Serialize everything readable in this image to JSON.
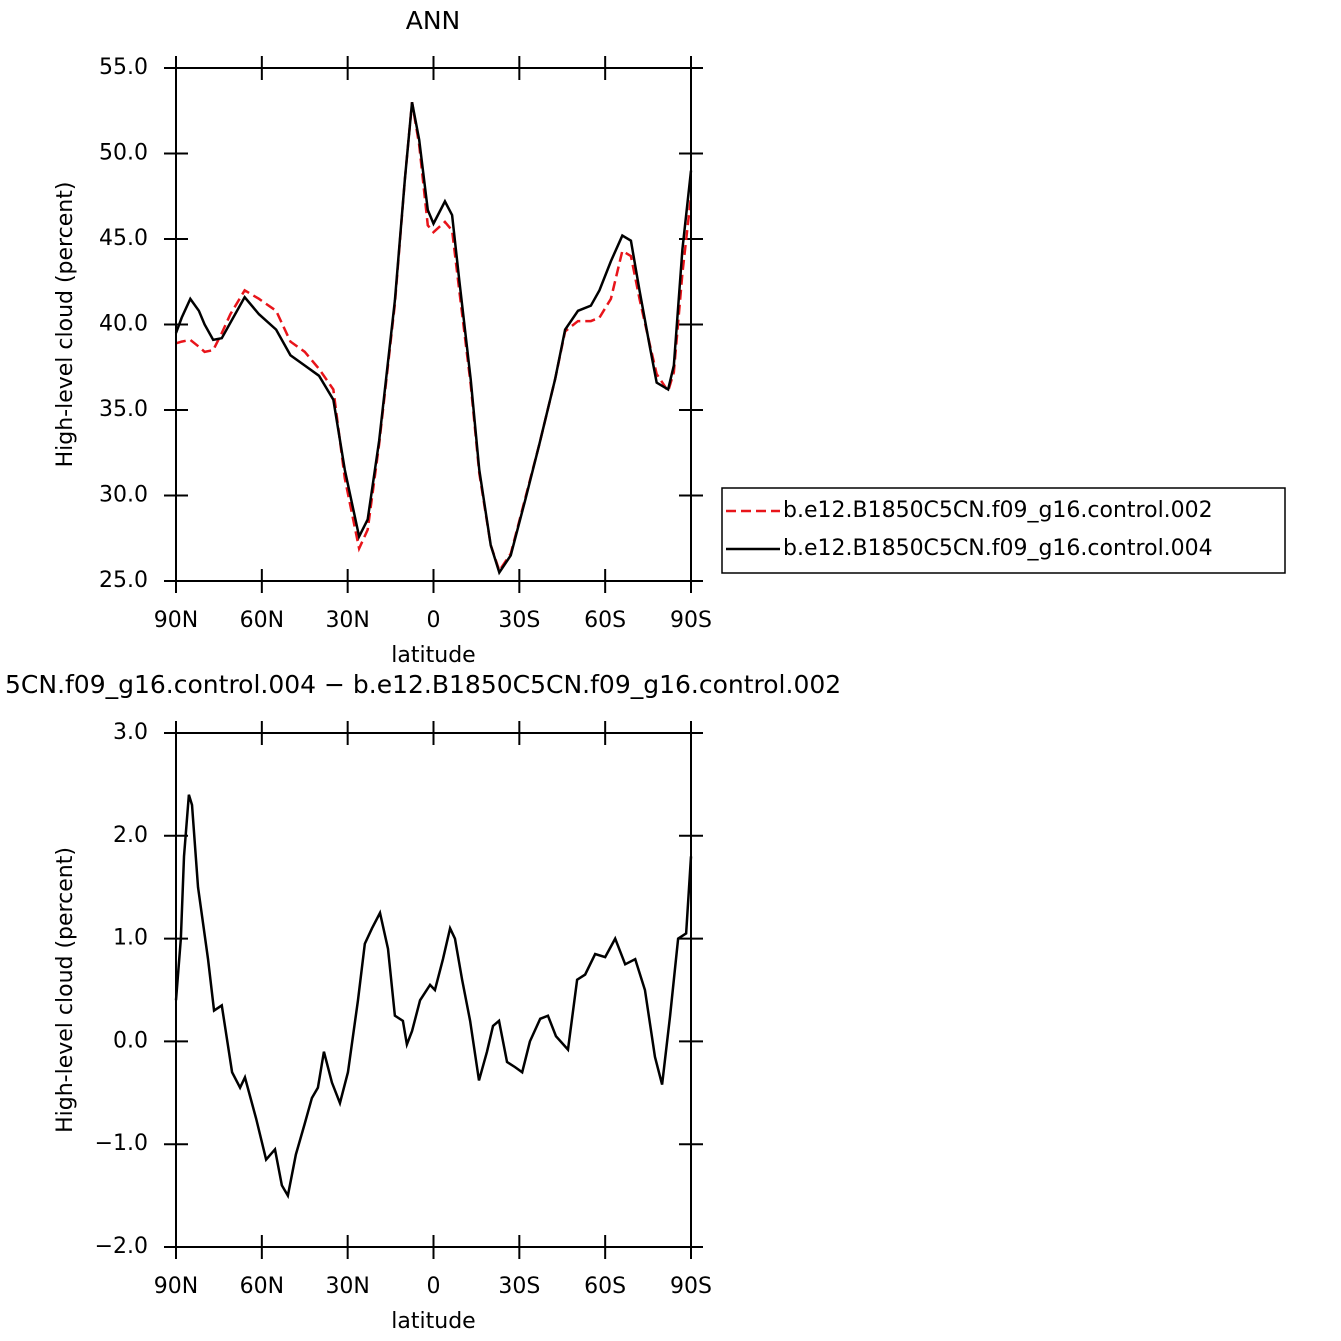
{
  "chart_data": [
    {
      "type": "line",
      "title": "ANN",
      "xlabel": "latitude",
      "ylabel": "High-level cloud (percent)",
      "x": [
        90,
        88,
        85,
        82,
        80,
        77,
        74,
        71,
        66,
        61,
        55,
        50,
        45,
        40,
        35,
        31,
        26,
        23,
        19,
        13.5,
        10,
        7.5,
        5,
        2,
        0,
        -4,
        -6.5,
        -9,
        -13,
        -16,
        -20,
        -23,
        -27,
        -32,
        -37,
        -42.5,
        -46,
        -50.5,
        -55,
        -58,
        -62,
        -66,
        -69,
        -72,
        -75.5,
        -78,
        -82,
        -84,
        -87,
        -90
      ],
      "xlim": [
        90,
        -90
      ],
      "xticks": [
        {
          "value": 90,
          "label": "90N"
        },
        {
          "value": 60,
          "label": "60N"
        },
        {
          "value": 30,
          "label": "30N"
        },
        0,
        {
          "value": -30,
          "label": "30S"
        },
        {
          "value": -60,
          "label": "60S"
        },
        {
          "value": -90,
          "label": "90S"
        }
      ],
      "ylim": [
        25,
        55
      ],
      "yticks": [
        {
          "value": 25,
          "label": "25.0"
        },
        {
          "value": 30,
          "label": "30.0"
        },
        {
          "value": 35,
          "label": "35.0"
        },
        {
          "value": 40,
          "label": "40.0"
        },
        {
          "value": 45,
          "label": "45.0"
        },
        {
          "value": 50,
          "label": "50.0"
        },
        {
          "value": 55,
          "label": "55.0"
        }
      ],
      "legend": "right",
      "series": [
        {
          "name": "b.e12.B1850C5CN.f09_g16.control.002",
          "color": "#e8141a",
          "linestyle": "dashed",
          "values": [
            38.9,
            39.0,
            39.1,
            38.7,
            38.4,
            38.5,
            39.5,
            40.6,
            42.0,
            41.5,
            40.8,
            39.0,
            38.4,
            37.4,
            36.2,
            31.0,
            26.9,
            28.0,
            33.0,
            41.2,
            48.5,
            53.0,
            50.5,
            45.8,
            45.4,
            46.0,
            45.5,
            42.0,
            36.5,
            31.3,
            27.1,
            25.6,
            26.6,
            29.8,
            33.0,
            36.8,
            39.6,
            40.2,
            40.2,
            40.4,
            41.5,
            44.3,
            44.0,
            41.5,
            38.9,
            37.1,
            36.1,
            37.2,
            43.0,
            47.5
          ]
        },
        {
          "name": "b.e12.B1850C5CN.f09_g16.control.004",
          "color": "#000000",
          "linestyle": "solid",
          "values": [
            39.5,
            40.4,
            41.5,
            40.8,
            40.0,
            39.1,
            39.2,
            40.1,
            41.6,
            40.6,
            39.7,
            38.2,
            37.6,
            37.0,
            35.6,
            31.5,
            27.6,
            28.6,
            33.2,
            41.4,
            48.5,
            53.0,
            50.8,
            46.7,
            45.9,
            47.2,
            46.4,
            42.6,
            36.8,
            31.5,
            27.1,
            25.5,
            26.5,
            29.7,
            33.0,
            36.8,
            39.7,
            40.8,
            41.1,
            42.0,
            43.7,
            45.2,
            44.9,
            42.0,
            38.8,
            36.6,
            36.2,
            37.6,
            44.4,
            49.0
          ]
        }
      ]
    },
    {
      "type": "line",
      "title": "5CN.f09_g16.control.004 − b.e12.B1850C5CN.f09_g16.control.002",
      "xlabel": "latitude",
      "ylabel": "High-level cloud (percent)",
      "x": [
        90,
        88.3,
        87.2,
        85.5,
        84.4,
        82.3,
        78.8,
        76.7,
        74,
        70.4,
        67.6,
        65.9,
        62,
        58.5,
        55.4,
        53,
        50.9,
        48.1,
        45,
        42.5,
        40.4,
        38.3,
        35.5,
        32.7,
        29.9,
        26.4,
        24,
        21.5,
        18.7,
        15.9,
        13.5,
        10.7,
        9.3,
        7.5,
        4.7,
        1.2,
        -0.5,
        -3.3,
        -5.8,
        -7.5,
        -10,
        -12.8,
        -15.9,
        -18.7,
        -20.8,
        -22.9,
        -25.7,
        -28.5,
        -31,
        -33.7,
        -37.3,
        -40,
        -42.8,
        -47,
        -50.2,
        -53,
        -56.5,
        -60,
        -63.5,
        -67,
        -70.5,
        -73.9,
        -77.4,
        -79.9,
        -82.7,
        -85.5,
        -88.3,
        -90
      ],
      "xlim": [
        90,
        -90
      ],
      "xticks": [
        {
          "value": 90,
          "label": "90N"
        },
        {
          "value": 60,
          "label": "60N"
        },
        {
          "value": 30,
          "label": "30N"
        },
        0,
        {
          "value": -30,
          "label": "30S"
        },
        {
          "value": -60,
          "label": "60S"
        },
        {
          "value": -90,
          "label": "90S"
        }
      ],
      "ylim": [
        -2,
        3
      ],
      "yticks": [
        {
          "value": -2,
          "label": "−2.0"
        },
        {
          "value": -1,
          "label": "−1.0"
        },
        {
          "value": 0,
          "label": "0.0"
        },
        {
          "value": 1,
          "label": "1.0"
        },
        {
          "value": 2,
          "label": "2.0"
        },
        {
          "value": 3,
          "label": "3.0"
        }
      ],
      "series": [
        {
          "color": "#000000",
          "linestyle": "solid",
          "values": [
            0.4,
            1.0,
            1.8,
            2.4,
            2.3,
            1.5,
            0.8,
            0.3,
            0.35,
            -0.3,
            -0.45,
            -0.35,
            -0.75,
            -1.15,
            -1.05,
            -1.4,
            -1.5,
            -1.1,
            -0.8,
            -0.55,
            -0.45,
            -0.1,
            -0.4,
            -0.6,
            -0.3,
            0.4,
            0.95,
            1.1,
            1.25,
            0.9,
            0.25,
            0.2,
            -0.03,
            0.1,
            0.4,
            0.55,
            0.5,
            0.8,
            1.1,
            1.0,
            0.6,
            0.2,
            -0.38,
            -0.1,
            0.15,
            0.2,
            -0.2,
            -0.25,
            -0.3,
            0.0,
            0.22,
            0.25,
            0.05,
            -0.08,
            0.6,
            0.65,
            0.85,
            0.82,
            1.0,
            0.75,
            0.8,
            0.5,
            -0.15,
            -0.42,
            0.25,
            1.0,
            1.05,
            1.8
          ]
        }
      ]
    }
  ]
}
